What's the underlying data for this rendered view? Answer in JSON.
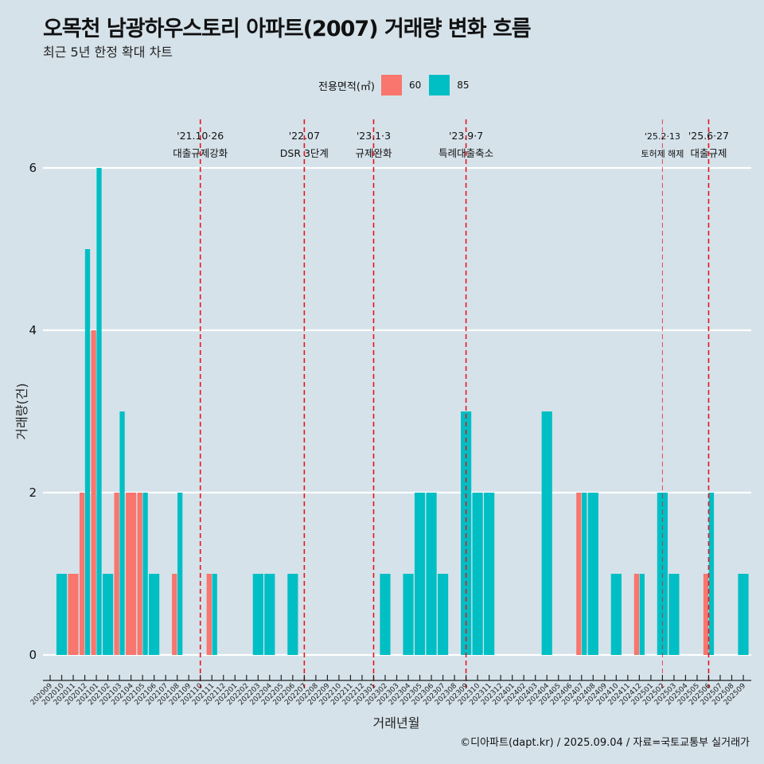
{
  "header": {
    "title": "오목천 남광하우스토리 아파트(2007) 거래량 변화 흐름",
    "subtitle": "최근 5년 한정 확대 차트"
  },
  "legend": {
    "title": "전용면적(㎡)",
    "items": [
      {
        "label": "60",
        "color": "#f8766d"
      },
      {
        "label": "85",
        "color": "#00bfc4"
      }
    ]
  },
  "caption": "©디아파트(dapt.kr) / 2025.09.04 / 자료=국토교통부 실거래가",
  "chart_data": {
    "type": "bar",
    "title": "오목천 남광하우스토리 아파트(2007) 거래량 변화 흐름",
    "subtitle": "최근 5년 한정 확대 차트",
    "xlabel": "거래년월",
    "ylabel": "거래량(건)",
    "ylim": [
      0,
      6
    ],
    "yticks": [
      0,
      2,
      4,
      6
    ],
    "grid": "horizontal major",
    "legend_position": "top",
    "categories": [
      "202009",
      "202010",
      "202011",
      "202012",
      "202101",
      "202102",
      "202103",
      "202104",
      "202105",
      "202106",
      "202107",
      "202108",
      "202109",
      "202110",
      "202111",
      "202112",
      "202201",
      "202202",
      "202203",
      "202204",
      "202205",
      "202206",
      "202207",
      "202208",
      "202209",
      "202210",
      "202211",
      "202212",
      "202301",
      "202302",
      "202303",
      "202304",
      "202305",
      "202306",
      "202307",
      "202308",
      "202309",
      "202310",
      "202311",
      "202312",
      "202401",
      "202402",
      "202403",
      "202404",
      "202405",
      "202406",
      "202407",
      "202408",
      "202409",
      "202410",
      "202411",
      "202412",
      "202501",
      "202502",
      "202503",
      "202504",
      "202505",
      "202506",
      "202507",
      "202508",
      "202509"
    ],
    "series": [
      {
        "name": "60",
        "color": "#f8766d",
        "values": [
          0,
          0,
          1,
          2,
          4,
          0,
          2,
          2,
          2,
          0,
          0,
          1,
          0,
          0,
          1,
          0,
          0,
          0,
          0,
          0,
          0,
          0,
          0,
          0,
          0,
          0,
          0,
          0,
          0,
          0,
          0,
          0,
          0,
          0,
          0,
          0,
          0,
          0,
          0,
          0,
          0,
          0,
          0,
          0,
          0,
          0,
          2,
          0,
          0,
          0,
          0,
          1,
          0,
          0,
          0,
          0,
          0,
          1,
          0,
          0,
          0
        ]
      },
      {
        "name": "85",
        "color": "#00bfc4",
        "values": [
          0,
          1,
          0,
          5,
          6,
          1,
          3,
          0,
          2,
          1,
          0,
          2,
          0,
          0,
          1,
          0,
          0,
          0,
          1,
          1,
          0,
          1,
          0,
          0,
          0,
          0,
          0,
          0,
          0,
          1,
          0,
          1,
          2,
          2,
          1,
          0,
          3,
          2,
          2,
          0,
          0,
          0,
          0,
          3,
          0,
          0,
          2,
          2,
          0,
          1,
          0,
          1,
          0,
          2,
          1,
          0,
          0,
          2,
          0,
          0,
          1
        ]
      }
    ],
    "events": [
      {
        "month": "202110",
        "date": "'21.10·26",
        "label": "대출규제강화",
        "style": "dashed"
      },
      {
        "month": "202207",
        "date": "'22.07",
        "label": "DSR 3단계",
        "style": "dashed"
      },
      {
        "month": "202301",
        "date": "'23.1·3",
        "label": "규제완화",
        "style": "dashed"
      },
      {
        "month": "202309",
        "date": "'23.9·7",
        "label": "특례대출축소",
        "style": "dashed"
      },
      {
        "month": "202502",
        "date": "'25.2·13",
        "label": "토허제 해제",
        "style": "dashed-light"
      },
      {
        "month": "202506",
        "date": "'25.6·27",
        "label": "대출규제",
        "style": "dashed"
      }
    ],
    "event_color": "#e8141c"
  }
}
